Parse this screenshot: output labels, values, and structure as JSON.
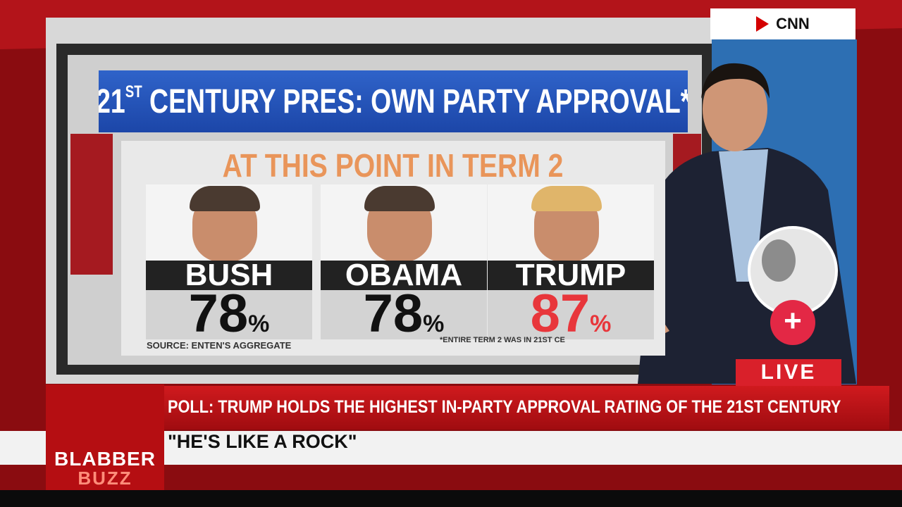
{
  "channel": {
    "logo": "CNN"
  },
  "graphic": {
    "title": {
      "number": "21",
      "suffix": "ST",
      "text": " CENTURY PRES: OWN PARTY APPROVAL*"
    },
    "subtitle": "AT THIS POINT IN TERM 2",
    "presidents": [
      {
        "name": "BUSH",
        "approval": 78,
        "unit": "%"
      },
      {
        "name": "OBAMA",
        "approval": 78,
        "unit": "%"
      },
      {
        "name": "TRUMP",
        "approval": 87,
        "unit": "%"
      }
    ],
    "source": "SOURCE: ENTEN'S AGGREGATE",
    "footnote": "*ENTIRE TERM 2 WAS IN 21ST CE"
  },
  "overlay": {
    "follow": "+",
    "live": "LIVE"
  },
  "lower_third": {
    "headline": "POLL: TRUMP HOLDS THE HIGHEST IN-PARTY APPROVAL RATING OF THE 21ST CENTURY",
    "quote": "\"HE'S LIKE A ROCK\""
  },
  "brand": {
    "name": "BLABBER",
    "sub": "BUZZ"
  }
}
